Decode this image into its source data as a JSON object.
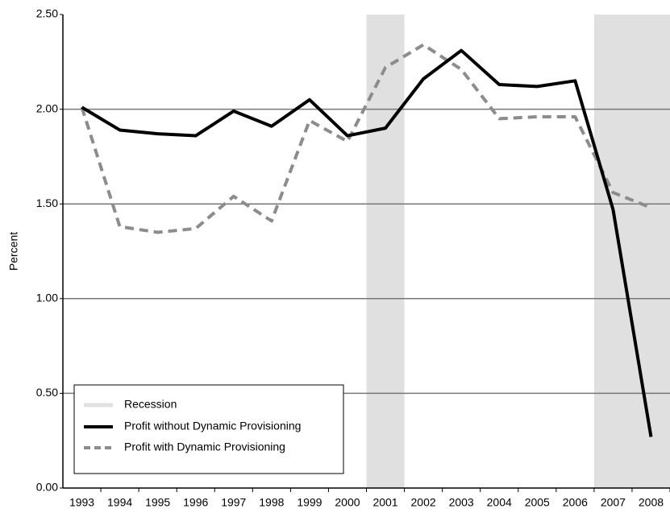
{
  "chart_data": {
    "type": "line",
    "y_label": "Percent",
    "categories": [
      "1993",
      "1994",
      "1995",
      "1996",
      "1997",
      "1998",
      "1999",
      "2000",
      "2001",
      "2002",
      "2003",
      "2004",
      "2005",
      "2006",
      "2007",
      "2008"
    ],
    "shaded": {
      "name": "Recession",
      "color": "#e0e0e0",
      "spans": [
        {
          "from": "2001",
          "to": "2001"
        },
        {
          "from": "2007",
          "to": "2008"
        }
      ]
    },
    "series": [
      {
        "name": "Profit without Dynamic Provisioning",
        "color": "#000000",
        "dash": false,
        "values": [
          2.01,
          1.89,
          1.87,
          1.86,
          1.99,
          1.91,
          2.05,
          1.86,
          1.9,
          2.16,
          2.31,
          2.13,
          2.12,
          2.15,
          1.47,
          0.27
        ]
      },
      {
        "name": "Profit with Dynamic Provisioning",
        "color": "#8c8c8c",
        "dash": true,
        "values": [
          2.01,
          1.38,
          1.35,
          1.37,
          1.54,
          1.41,
          1.94,
          1.83,
          2.22,
          2.34,
          2.21,
          1.95,
          1.96,
          1.96,
          1.56,
          1.48
        ]
      }
    ],
    "ylim": [
      0,
      2.5
    ],
    "yticks": [
      {
        "value": 0,
        "label": "0.00"
      },
      {
        "value": 0.5,
        "label": "0.50"
      },
      {
        "value": 1,
        "label": "1.00"
      },
      {
        "value": 1.5,
        "label": "1.50"
      },
      {
        "value": 2,
        "label": "2.00"
      },
      {
        "value": 2.5,
        "label": "2.50"
      }
    ],
    "grid": true
  }
}
